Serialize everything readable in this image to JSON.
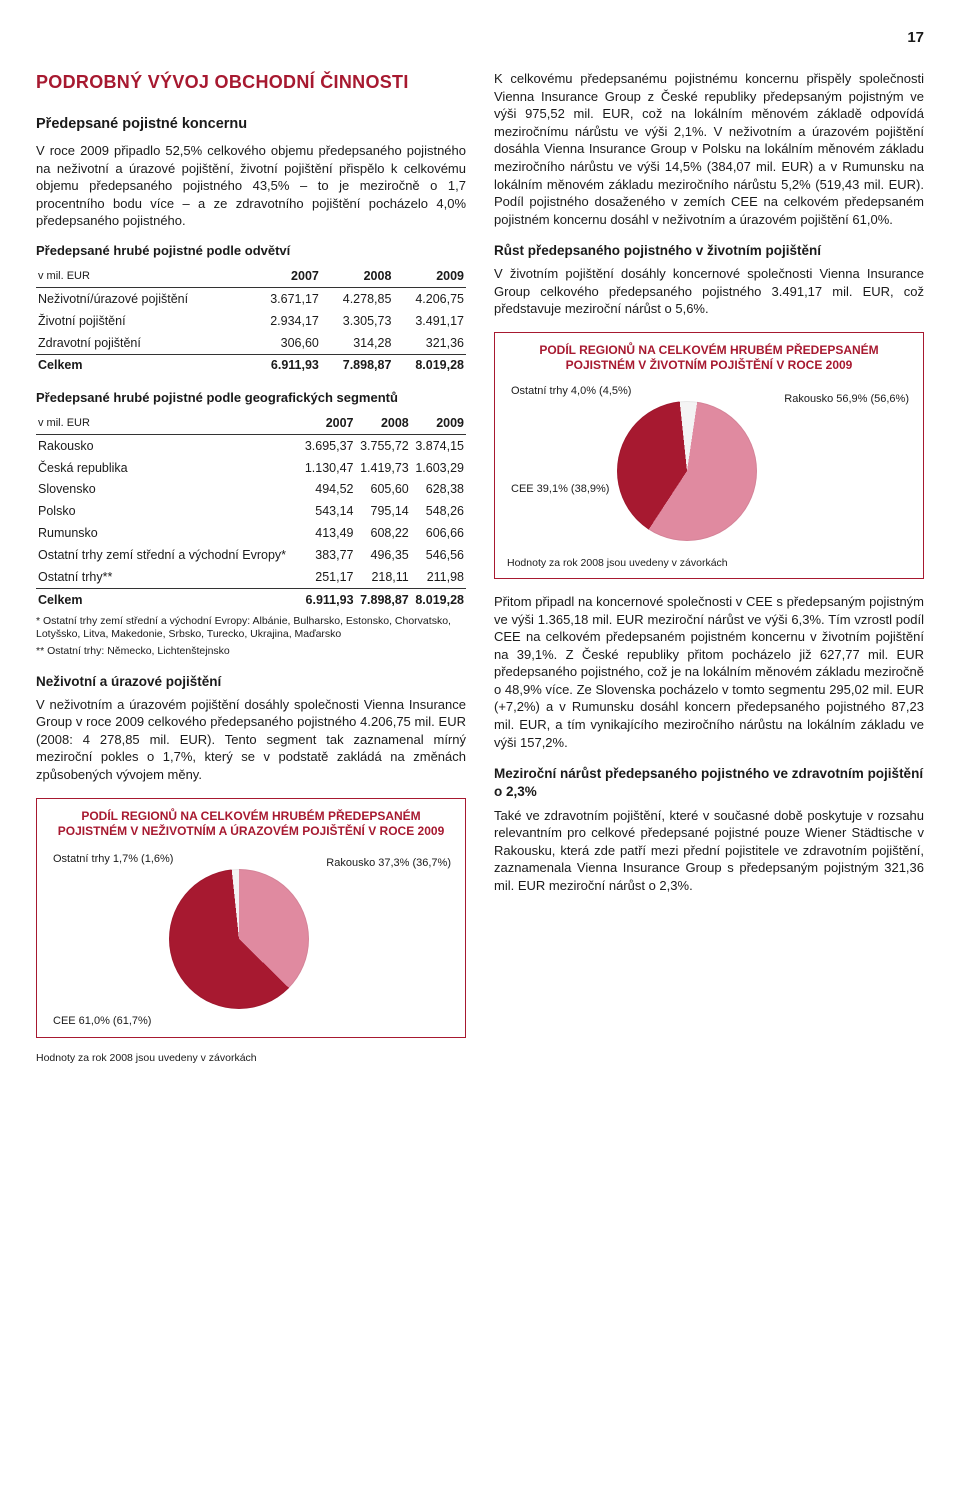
{
  "page_number": "17",
  "title": "PODROBNÝ VÝVOJ OBCHODNÍ ČINNOSTI",
  "left": {
    "h2": "Předepsané pojistné koncernu",
    "p1": "V roce 2009 připadlo 52,5% celkového objemu předepsaného pojistného na neživotní a úrazové pojištění, životní pojištění přispělo k celkovému objemu předepsaného pojistného 43,5% – to je meziročně o 1,7 procentního bodu více – a ze zdravotního pojištění pocházelo 4,0% předepsaného pojistného.",
    "tbl1_caption": "Předepsané hrubé pojistné podle odvětví",
    "unit_label": "v mil. EUR",
    "years": [
      "2007",
      "2008",
      "2009"
    ],
    "tbl1": {
      "rows": [
        {
          "label": "Neživotní/úrazové pojištění",
          "v": [
            "3.671,17",
            "4.278,85",
            "4.206,75"
          ]
        },
        {
          "label": "Životní pojištění",
          "v": [
            "2.934,17",
            "3.305,73",
            "3.491,17"
          ]
        },
        {
          "label": "Zdravotní pojištění",
          "v": [
            "306,60",
            "314,28",
            "321,36"
          ]
        }
      ],
      "total": {
        "label": "Celkem",
        "v": [
          "6.911,93",
          "7.898,87",
          "8.019,28"
        ]
      }
    },
    "tbl2_caption": "Předepsané hrubé pojistné podle geografických segmentů",
    "tbl2": {
      "rows": [
        {
          "label": "Rakousko",
          "v": [
            "3.695,37",
            "3.755,72",
            "3.874,15"
          ]
        },
        {
          "label": "Česká republika",
          "v": [
            "1.130,47",
            "1.419,73",
            "1.603,29"
          ]
        },
        {
          "label": "Slovensko",
          "v": [
            "494,52",
            "605,60",
            "628,38"
          ]
        },
        {
          "label": "Polsko",
          "v": [
            "543,14",
            "795,14",
            "548,26"
          ]
        },
        {
          "label": "Rumunsko",
          "v": [
            "413,49",
            "608,22",
            "606,66"
          ]
        },
        {
          "label": "Ostatní trhy zemí střední a východní Evropy*",
          "v": [
            "383,77",
            "496,35",
            "546,56"
          ]
        },
        {
          "label": "Ostatní trhy**",
          "v": [
            "251,17",
            "218,11",
            "211,98"
          ]
        }
      ],
      "total": {
        "label": "Celkem",
        "v": [
          "6.911,93",
          "7.898,87",
          "8.019,28"
        ]
      }
    },
    "fn1": "* Ostatní trhy zemí střední a východní Evropy: Albánie, Bulharsko, Estonsko, Chorvatsko, Lotyšsko, Litva, Makedonie, Srbsko, Turecko, Ukrajina, Maďarsko",
    "fn2": "** Ostatní trhy: Německo, Lichtenštejnsko",
    "h3a": "Neživotní a úrazové pojištění",
    "p2": "V neživotním a úrazovém pojištění dosáhly společnosti Vienna Insurance Group v roce 2009 celkového předepsaného pojistného 4.206,75 mil. EUR (2008: 4 278,85 mil. EUR). Tento segment tak zaznamenal mírný meziroční pokles o 1,7%, který se v podstatě zakládá na změnách způsobených vývojem měny.",
    "pie1": {
      "title": "PODÍL REGIONŮ NA CELKOVÉM HRUBÉM PŘEDEPSANÉM POJISTNÉM V NEŽIVOTNÍM A ÚRAZOVÉM POJIŠTĚNÍ V ROCE 2009",
      "slices": [
        {
          "label": "Rakousko 37,3% (36,7%)",
          "pct": 37.3,
          "color": "#e08aa0"
        },
        {
          "label": "CEE 61,0% (61,7%)",
          "pct": 61.0,
          "color": "#a71930"
        },
        {
          "label": "Ostatní trhy 1,7% (1,6%)",
          "pct": 1.7,
          "color": "#f4f4f4"
        }
      ],
      "note": "Hodnoty za rok 2008 jsou uvedeny v závorkách"
    }
  },
  "right": {
    "p1": "K celkovému předepsanému pojistnému koncernu přispěly společnosti Vienna Insurance Group z České republiky předepsaným pojistným ve výši 975,52 mil. EUR, což na lokálním měnovém základě odpovídá meziročnímu nárůstu ve výši 2,1%. V neživotním a úrazovém pojištění dosáhla Vienna Insurance Group v Polsku na lokálním měnovém základu meziročního nárůstu ve výši 14,5% (384,07 mil. EUR) a v Rumunsku na lokálním měnovém základu meziročního nárůstu 5,2% (519,43 mil. EUR). Podíl pojistného dosaženého v zemích CEE na celkovém předepsaném pojistném koncernu dosáhl v neživotním a úrazovém pojištění 61,0%.",
    "h3a": "Růst předepsaného pojistného v životním pojištění",
    "p2": "V životním pojištění dosáhly koncernové společnosti Vienna Insurance Group celkového předepsaného pojistného 3.491,17 mil. EUR, což představuje meziroční nárůst o 5,6%.",
    "pie2": {
      "title": "PODÍL REGIONŮ NA CELKOVÉM HRUBÉM PŘEDEPSANÉM POJISTNÉM V ŽIVOTNÍM POJIŠTĚNÍ V ROCE 2009",
      "slices": [
        {
          "label": "Rakousko 56,9% (56,6%)",
          "pct": 56.9,
          "color": "#e08aa0"
        },
        {
          "label": "CEE 39,1% (38,9%)",
          "pct": 39.1,
          "color": "#a71930"
        },
        {
          "label": "Ostatní trhy 4,0% (4,5%)",
          "pct": 4.0,
          "color": "#f4f4f4"
        }
      ],
      "note": "Hodnoty za rok 2008 jsou uvedeny v závorkách"
    },
    "p3": "Přitom připadl na koncernové společnosti v CEE s předepsaným pojistným ve výši 1.365,18 mil. EUR meziroční nárůst ve výši 6,3%. Tím vzrostl podíl CEE na celkovém předepsaném pojistném koncernu v životním pojištění na 39,1%. Z České republiky přitom pocházelo již 627,77 mil. EUR předepsaného pojistného, což je na lokálním měnovém základu meziročně o 48,9% více. Ze Slovenska pocházelo v tomto segmentu 295,02 mil. EUR (+7,2%) a v Rumunsku dosáhl koncern předepsaného pojistného 87,23 mil. EUR, a tím vynikajícího meziročního nárůstu na lokálním základu ve výši 157,2%.",
    "h3b": "Meziroční nárůst předepsaného pojistného ve zdravotním pojištění o 2,3%",
    "p4": "Také ve zdravotním pojištění, které v současné době poskytuje v rozsahu relevantním pro celkové předepsané pojistné pouze Wiener Städtische v Rakousku, která zde patří mezi přední pojistitele ve zdravotním pojištění, zaznamenala Vienna Insurance Group s předepsaným pojistným 321,36 mil. EUR meziroční nárůst o 2,3%."
  },
  "colors": {
    "brand": "#a71930",
    "pink": "#e08aa0",
    "grey": "#f4f4f4"
  }
}
